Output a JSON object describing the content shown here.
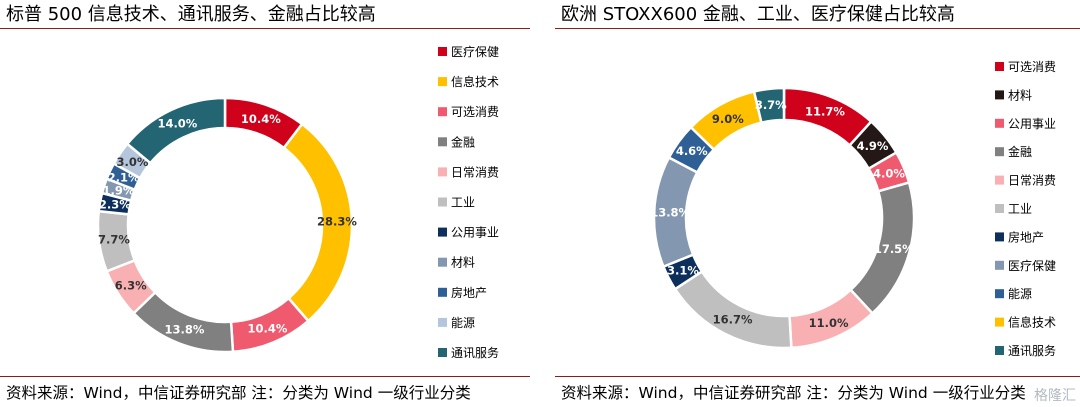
{
  "charts": [
    {
      "title": "标普 500 信息技术、通讯服务、金融占比较高",
      "source": "资料来源：Wind，中信证券研究部  注：分类为 Wind 一级行业分类"
    },
    {
      "title": "欧洲 STOXX600 金融、工业、医疗保健占比较高",
      "source": "资料来源：Wind，中信证券研究部  注：分类为 Wind 一级行业分类"
    }
  ],
  "watermark": "格隆汇",
  "chart_data": [
    {
      "type": "pie",
      "subtype": "donut",
      "title": "标普 500 信息技术、通讯服务、金融占比较高",
      "legend_position": "right",
      "series": [
        {
          "name": "医疗保健",
          "value": 10.4,
          "label": "10.4%",
          "color": "#d0021b"
        },
        {
          "name": "信息技术",
          "value": 28.3,
          "label": "28.3%",
          "color": "#ffc000"
        },
        {
          "name": "可选消费",
          "value": 10.4,
          "label": "10.4%",
          "color": "#f05a6e"
        },
        {
          "name": "金融",
          "value": 13.8,
          "label": "13.8%",
          "color": "#808080"
        },
        {
          "name": "日常消费",
          "value": 6.3,
          "label": "6.3%",
          "color": "#f9b0b3"
        },
        {
          "name": "工业",
          "value": 7.7,
          "label": "7.7%",
          "color": "#bfbfbf"
        },
        {
          "name": "公用事业",
          "value": 2.3,
          "label": "2.3%",
          "color": "#0d2f5c"
        },
        {
          "name": "材料",
          "value": 1.9,
          "label": "1.9%",
          "color": "#8497b0"
        },
        {
          "name": "房地产",
          "value": 2.1,
          "label": "2.1%",
          "color": "#2e5f95"
        },
        {
          "name": "能源",
          "value": 3.0,
          "label": "3.0%",
          "color": "#b4c6dc"
        },
        {
          "name": "通讯服务",
          "value": 14.0,
          "label": "14.0%",
          "color": "#246574"
        }
      ]
    },
    {
      "type": "pie",
      "subtype": "donut",
      "title": "欧洲 STOXX600 金融、工业、医疗保健占比较高",
      "legend_position": "right",
      "series": [
        {
          "name": "可选消费",
          "value": 11.7,
          "label": "11.7%",
          "color": "#d0021b"
        },
        {
          "name": "材料",
          "value": 4.9,
          "label": "4.9%",
          "color": "#231815"
        },
        {
          "name": "公用事业",
          "value": 4.0,
          "label": "4.0%",
          "color": "#f05a6e"
        },
        {
          "name": "金融",
          "value": 17.5,
          "label": "17.5%",
          "color": "#808080"
        },
        {
          "name": "日常消费",
          "value": 11.0,
          "label": "11.0%",
          "color": "#f9b0b3"
        },
        {
          "name": "工业",
          "value": 16.7,
          "label": "16.7%",
          "color": "#bfbfbf"
        },
        {
          "name": "房地产",
          "value": 3.1,
          "label": "3.1%",
          "color": "#0d2f5c"
        },
        {
          "name": "医疗保健",
          "value": 13.8,
          "label": "13.8%",
          "color": "#8497b0"
        },
        {
          "name": "能源",
          "value": 4.6,
          "label": "4.6%",
          "color": "#2e5f95"
        },
        {
          "name": "信息技术",
          "value": 9.0,
          "label": "9.0%",
          "color": "#ffc000"
        },
        {
          "name": "通讯服务",
          "value": 3.7,
          "label": "3.7%",
          "color": "#246574"
        }
      ]
    }
  ]
}
